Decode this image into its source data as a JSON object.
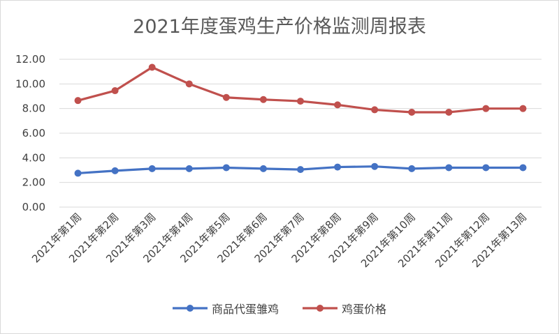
{
  "chart_data": {
    "type": "line",
    "title": "2021年度蛋鸡生产价格监测周报表",
    "xlabel": "",
    "ylabel": "",
    "ylim": [
      0,
      12
    ],
    "yticks": [
      "0.00",
      "2.00",
      "4.00",
      "6.00",
      "8.00",
      "10.00",
      "12.00"
    ],
    "grid": true,
    "legend_position": "bottom",
    "categories": [
      "2021年第1周",
      "2021年第2周",
      "2021年第3周",
      "2021年第4周",
      "2021年第5周",
      "2021年第6周",
      "2021年第7周",
      "2021年第8周",
      "2021年第9周",
      "2021年第10周",
      "2021年第11周",
      "2021年第12周",
      "2021年第13周"
    ],
    "series": [
      {
        "name": "商品代蛋雏鸡",
        "color": "#4472c4",
        "values": [
          2.75,
          2.95,
          3.12,
          3.12,
          3.2,
          3.12,
          3.05,
          3.25,
          3.3,
          3.12,
          3.2,
          3.2,
          3.2
        ]
      },
      {
        "name": "鸡蛋价格",
        "color": "#c0504d",
        "values": [
          8.65,
          9.45,
          11.35,
          10.0,
          8.9,
          8.73,
          8.6,
          8.3,
          7.9,
          7.7,
          7.7,
          8.0,
          8.0
        ]
      }
    ]
  }
}
